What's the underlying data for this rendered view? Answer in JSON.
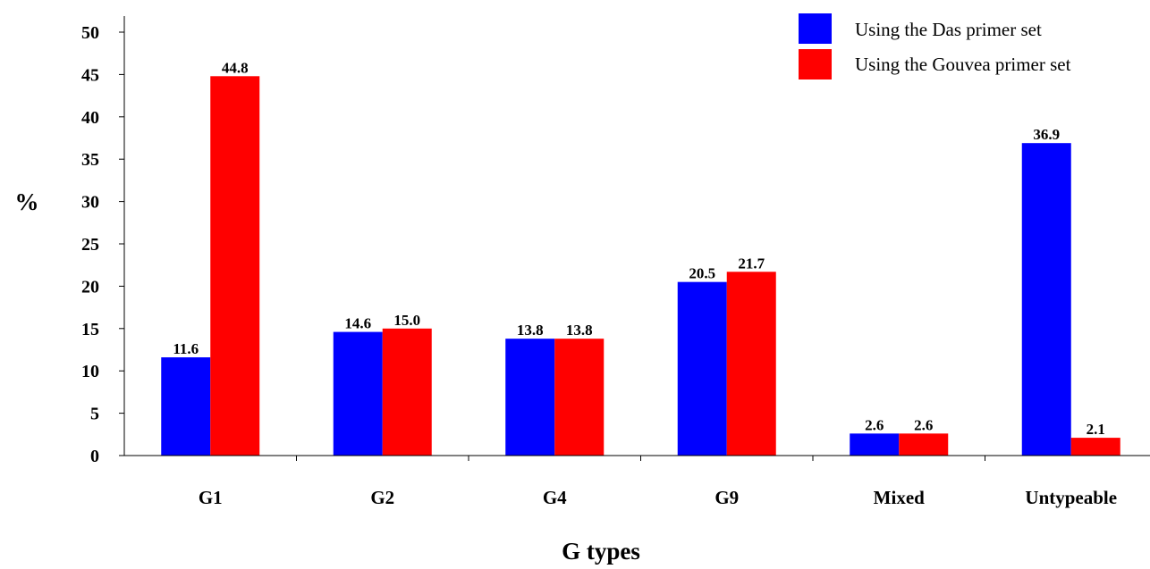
{
  "chart_data": {
    "type": "bar",
    "title": "",
    "xlabel": "G types",
    "ylabel": "%",
    "ylim": [
      0,
      50
    ],
    "yticks": [
      "0",
      "5",
      "10",
      "15",
      "20",
      "25",
      "30",
      "35",
      "40",
      "45",
      "50"
    ],
    "grid": false,
    "legend_position": "top-right",
    "categories": [
      "G1",
      "G2",
      "G4",
      "G9",
      "Mixed",
      "Untypeable"
    ],
    "series": [
      {
        "name": "Using the Das primer set",
        "color": "#0000ff",
        "values": [
          11.6,
          14.6,
          13.8,
          20.5,
          2.6,
          36.9
        ],
        "labels": [
          "11.6",
          "14.6",
          "13.8",
          "20.5",
          "2.6",
          "36.9"
        ]
      },
      {
        "name": "Using the Gouvea primer set",
        "color": "#ff0000",
        "values": [
          44.8,
          15.0,
          13.8,
          21.7,
          2.6,
          2.1
        ],
        "labels": [
          "44.8",
          "15.0",
          "13.8",
          "21.7",
          "2.6",
          "2.1"
        ]
      }
    ]
  }
}
